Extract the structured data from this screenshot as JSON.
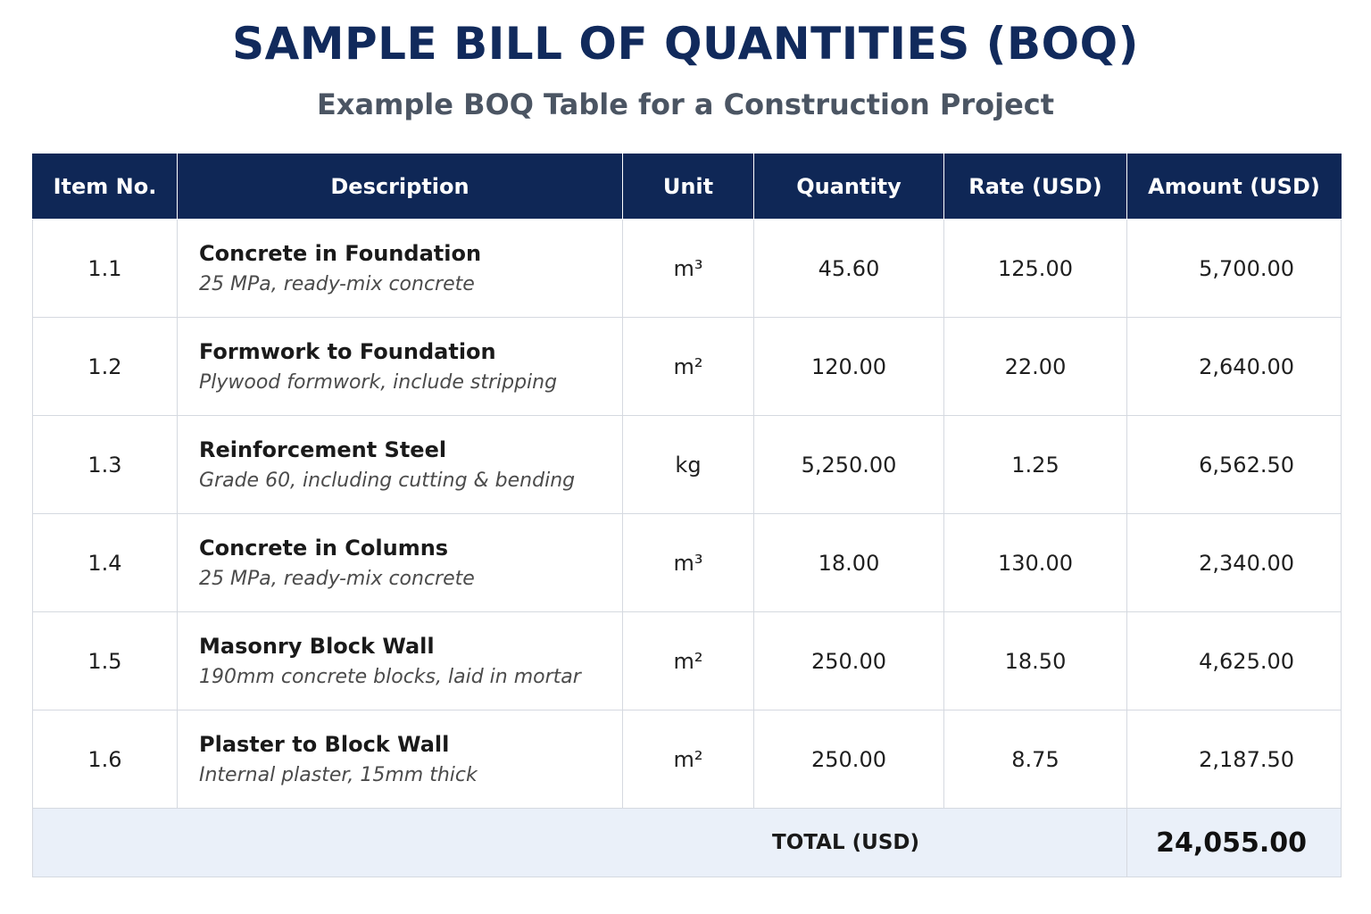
{
  "header": {
    "title": "SAMPLE BILL OF QUANTITIES (BOQ)",
    "subtitle": "Example BOQ Table for a Construction Project"
  },
  "table": {
    "columns": [
      "Item No.",
      "Description",
      "Unit",
      "Quantity",
      "Rate (USD)",
      "Amount (USD)"
    ],
    "rows": [
      {
        "item": "1.1",
        "title": "Concrete in Foundation",
        "detail": "25 MPa, ready-mix concrete",
        "unit": "m³",
        "quantity": "45.60",
        "rate": "125.00",
        "amount": "5,700.00"
      },
      {
        "item": "1.2",
        "title": "Formwork to Foundation",
        "detail": "Plywood formwork, include stripping",
        "unit": "m²",
        "quantity": "120.00",
        "rate": "22.00",
        "amount": "2,640.00"
      },
      {
        "item": "1.3",
        "title": "Reinforcement Steel",
        "detail": "Grade 60, including cutting & bending",
        "unit": "kg",
        "quantity": "5,250.00",
        "rate": "1.25",
        "amount": "6,562.50"
      },
      {
        "item": "1.4",
        "title": "Concrete in Columns",
        "detail": "25 MPa, ready-mix concrete",
        "unit": "m³",
        "quantity": "18.00",
        "rate": "130.00",
        "amount": "2,340.00"
      },
      {
        "item": "1.5",
        "title": "Masonry Block Wall",
        "detail": "190mm concrete blocks, laid in mortar",
        "unit": "m²",
        "quantity": "250.00",
        "rate": "18.50",
        "amount": "4,625.00"
      },
      {
        "item": "1.6",
        "title": "Plaster to Block Wall",
        "detail": "Internal plaster, 15mm thick",
        "unit": "m²",
        "quantity": "250.00",
        "rate": "8.75",
        "amount": "2,187.50"
      }
    ],
    "total_label": "TOTAL (USD)",
    "total_value": "24,055.00"
  }
}
